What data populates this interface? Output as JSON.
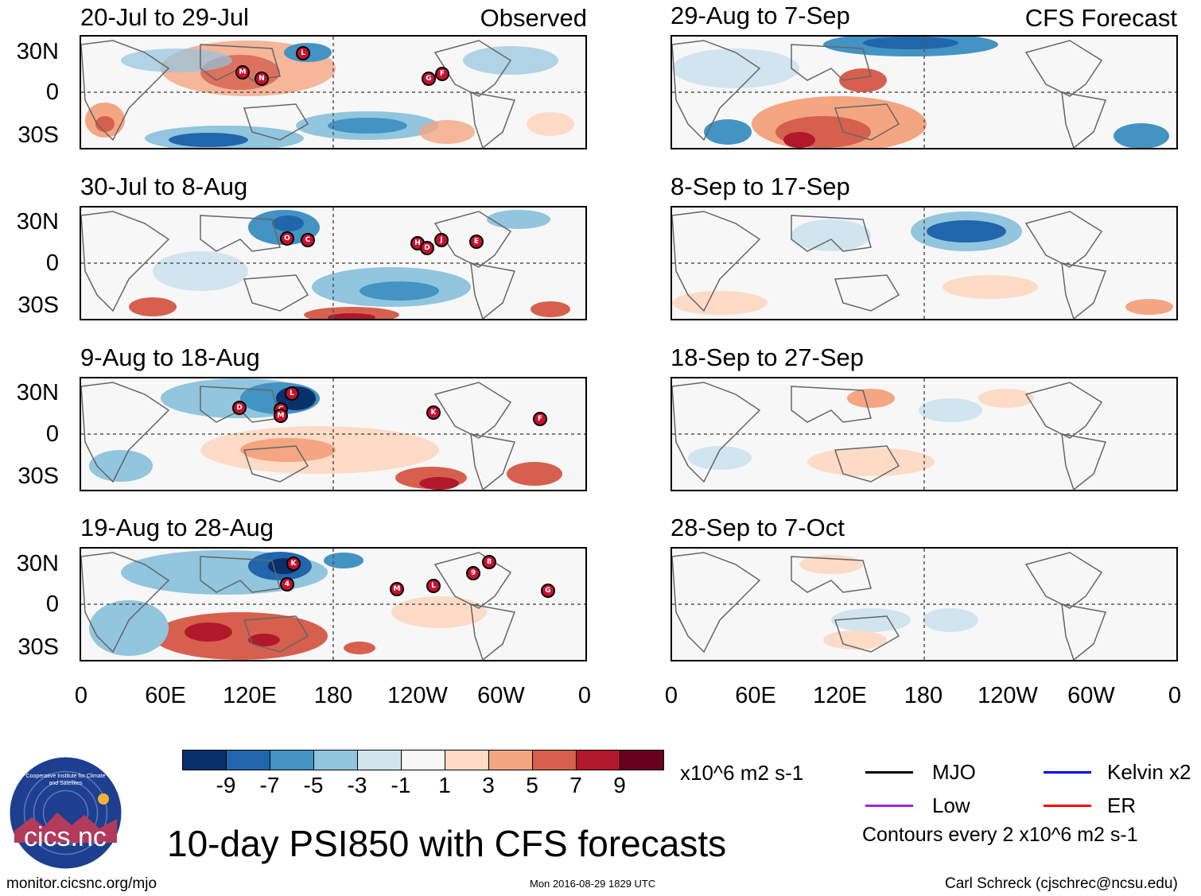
{
  "observed_label": "Observed",
  "forecast_label": "CFS Forecast",
  "observed_panels": [
    {
      "title": "20-Jul to 29-Jul",
      "storms": [
        "L",
        "M",
        "N",
        "G",
        "F"
      ]
    },
    {
      "title": "30-Jul to 8-Aug",
      "storms": [
        "O",
        "C",
        "H",
        "D",
        "J",
        "E"
      ]
    },
    {
      "title": "9-Aug to 18-Aug",
      "storms": [
        "L",
        "D",
        "C",
        "M",
        "K",
        "F"
      ]
    },
    {
      "title": "19-Aug to 28-Aug",
      "storms": [
        "K",
        "4",
        "M",
        "L",
        "9",
        "8",
        "G"
      ]
    }
  ],
  "forecast_panels": [
    {
      "title": "29-Aug to 7-Sep"
    },
    {
      "title": "8-Sep to 17-Sep"
    },
    {
      "title": "18-Sep to 27-Sep"
    },
    {
      "title": "28-Sep to 7-Oct"
    }
  ],
  "y_axis_labels": [
    "30N",
    "0",
    "30S"
  ],
  "x_axis_labels": [
    "0",
    "60E",
    "120E",
    "180",
    "120W",
    "60W",
    "0"
  ],
  "colorbar": {
    "colors": [
      "#08306b",
      "#2166ac",
      "#4393c3",
      "#92c5de",
      "#d1e5f0",
      "#f7f7f7",
      "#fddbc7",
      "#f4a582",
      "#d6604d",
      "#b2182b",
      "#67001f"
    ],
    "tick_labels": [
      "-9",
      "-7",
      "-5",
      "-3",
      "-1",
      "1",
      "3",
      "5",
      "7",
      "9"
    ],
    "units": "x10^6 m2 s-1"
  },
  "legend": {
    "items": [
      {
        "label": "MJO",
        "color": "#000000"
      },
      {
        "label": "Kelvin x2",
        "color": "#0000ff"
      },
      {
        "label": "Low",
        "color": "#a020f0"
      },
      {
        "label": "ER",
        "color": "#ff0000"
      }
    ],
    "contour_note": "Contours every 2 x10^6 m2 s-1"
  },
  "main_title": "10-day PSI850 with CFS forecasts",
  "logo_text": "cics.nc",
  "logo_ring_text": "Cooperative Institute for Climate and Satellites",
  "footer": {
    "url": "monitor.cicsnc.org/mjo",
    "timestamp": "Mon 2016-08-29 1829 UTC",
    "author": "Carl Schreck (cjschrec@ncsu.edu)"
  }
}
